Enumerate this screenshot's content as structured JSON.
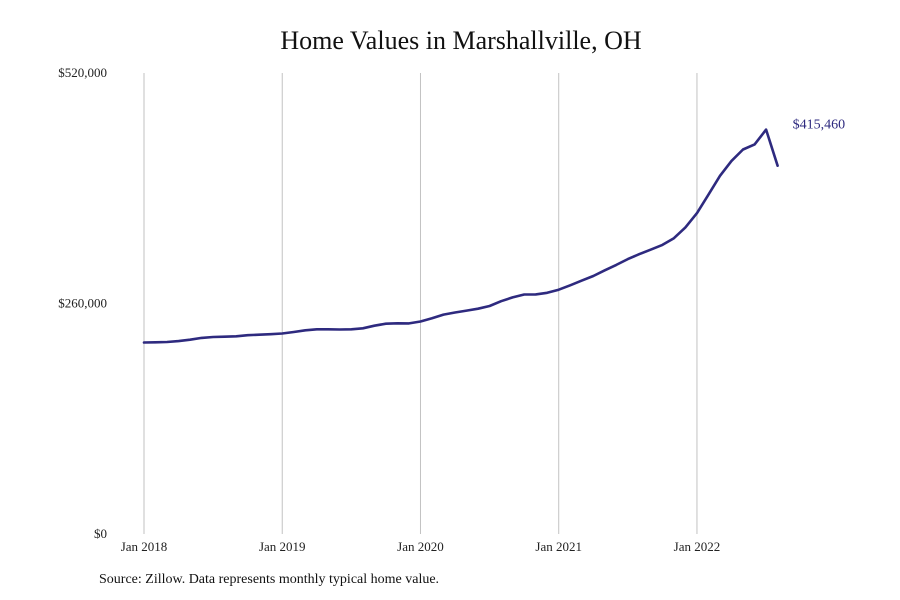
{
  "chart_data": {
    "type": "line",
    "title": "Home Values in Marshallville, OH",
    "xlabel": "",
    "ylabel": "",
    "ylim": [
      0,
      520000
    ],
    "xlim": [
      "2018-01",
      "2022-08"
    ],
    "y_ticks": [
      "$0",
      "$260,000",
      "$520,000"
    ],
    "y_tick_values": [
      0,
      260000,
      520000
    ],
    "x_ticks": [
      "Jan 2018",
      "Jan 2019",
      "Jan 2020",
      "Jan 2021",
      "Jan 2022"
    ],
    "x_tick_values": [
      "2018-01",
      "2019-01",
      "2020-01",
      "2021-01",
      "2022-01"
    ],
    "grid": "vertical",
    "line_color": "#2e2a7f",
    "end_label": "$415,460",
    "series": [
      {
        "x": [
          "2018-01",
          "2018-02",
          "2018-03",
          "2018-04",
          "2018-05",
          "2018-06",
          "2018-07",
          "2018-08",
          "2018-09",
          "2018-10",
          "2018-11",
          "2018-12",
          "2019-01",
          "2019-02",
          "2019-03",
          "2019-04",
          "2019-05",
          "2019-06",
          "2019-07",
          "2019-08",
          "2019-09",
          "2019-10",
          "2019-11",
          "2019-12",
          "2020-01",
          "2020-02",
          "2020-03",
          "2020-04",
          "2020-05",
          "2020-06",
          "2020-07",
          "2020-08",
          "2020-09",
          "2020-10",
          "2020-11",
          "2020-12",
          "2021-01",
          "2021-02",
          "2021-03",
          "2021-04",
          "2021-05",
          "2021-06",
          "2021-07",
          "2021-08",
          "2021-09",
          "2021-10",
          "2021-11",
          "2021-12",
          "2022-01",
          "2022-02",
          "2022-03",
          "2022-04",
          "2022-05",
          "2022-06",
          "2022-07",
          "2022-08"
        ],
        "values": [
          216000,
          216200,
          216600,
          217600,
          219200,
          221200,
          222200,
          222600,
          223000,
          224200,
          224800,
          225400,
          226200,
          227800,
          229800,
          230900,
          230900,
          230700,
          230900,
          232000,
          235000,
          237200,
          237700,
          237600,
          239700,
          243300,
          247500,
          249900,
          252000,
          254100,
          257200,
          262600,
          266900,
          270100,
          270300,
          272100,
          275600,
          280500,
          285800,
          291000,
          297400,
          303500,
          310100,
          315700,
          320800,
          326100,
          333700,
          345800,
          362000,
          382800,
          404000,
          420800,
          433700,
          439500,
          456200,
          415460
        ]
      }
    ]
  },
  "source_note": "Source: Zillow. Data represents monthly typical home value."
}
